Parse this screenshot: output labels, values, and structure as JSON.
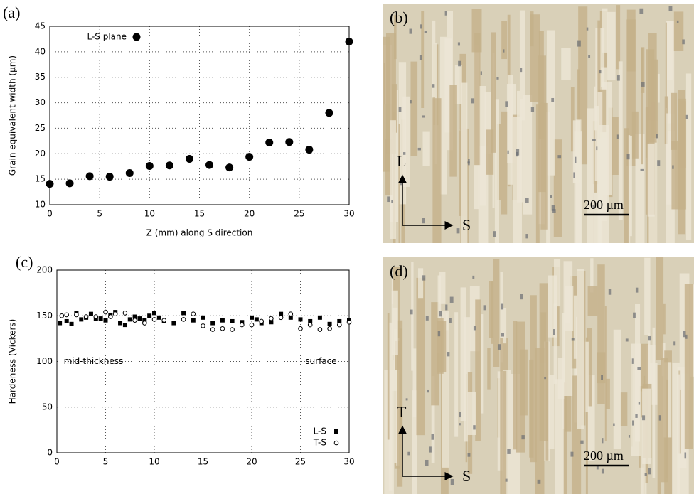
{
  "chart_data": [
    {
      "type": "scatter",
      "panel": "(a)",
      "xlabel": "Z (mm) along S direction",
      "ylabel": "Grain equivalent width (µm)",
      "xlim": [
        0,
        30
      ],
      "ylim": [
        10,
        45
      ],
      "xticks": [
        0,
        5,
        10,
        15,
        20,
        25,
        30
      ],
      "yticks": [
        10,
        15,
        20,
        25,
        30,
        35,
        40,
        45
      ],
      "grid": true,
      "legend": "upper-left",
      "series": [
        {
          "name": "L-S plane",
          "color": "#000000",
          "marker": "circle",
          "x": [
            0,
            2,
            4,
            6,
            8,
            10,
            12,
            14,
            16,
            18,
            20,
            22,
            24,
            26,
            28,
            30
          ],
          "values": [
            14.1,
            14.2,
            15.6,
            15.5,
            16.2,
            17.6,
            17.7,
            19.0,
            17.8,
            17.3,
            19.4,
            22.2,
            22.3,
            20.8,
            28.0,
            42.0
          ]
        }
      ]
    },
    {
      "type": "scatter",
      "panel": "(c)",
      "ylabel": "Hardeness (Vickers)",
      "xlim": [
        0,
        30
      ],
      "ylim": [
        0,
        200
      ],
      "xticks": [
        0,
        5,
        10,
        15,
        20,
        25,
        30
      ],
      "yticks": [
        0,
        50,
        100,
        150,
        200
      ],
      "grid": true,
      "legend": "lower-right",
      "annotations": [
        {
          "text": "mid-thickness",
          "x": 0.7,
          "y": 100
        },
        {
          "text": "surface",
          "x": 25.5,
          "y": 100
        }
      ],
      "series": [
        {
          "name": "L-S",
          "color": "#000000",
          "marker": "square",
          "x": [
            0.3,
            1,
            1.5,
            2,
            2.5,
            3,
            3.5,
            4,
            4.5,
            5,
            5.5,
            6,
            6.5,
            7,
            7.5,
            8,
            8.5,
            9,
            9.5,
            10,
            10.5,
            11,
            12,
            13,
            14,
            15,
            16,
            17,
            18,
            19,
            20,
            20.5,
            21,
            22,
            23,
            24,
            25,
            26,
            27,
            28,
            29,
            30
          ],
          "values": [
            142,
            144,
            141,
            153,
            146,
            148,
            152,
            147,
            147,
            145,
            151,
            154,
            142,
            140,
            146,
            149,
            147,
            145,
            150,
            153,
            148,
            144,
            142,
            153,
            145,
            148,
            142,
            145,
            144,
            143,
            148,
            146,
            142,
            143,
            152,
            148,
            146,
            144,
            148,
            141,
            144,
            145
          ]
        },
        {
          "name": "T-S",
          "color": "#000000",
          "marker": "open-circle",
          "x": [
            0.5,
            1,
            2,
            3,
            4,
            5,
            5.5,
            6,
            7,
            8,
            9,
            10,
            11,
            13,
            14,
            15,
            16,
            17,
            18,
            19,
            20,
            21,
            22,
            23,
            24,
            25,
            26,
            27,
            28,
            29,
            30
          ],
          "values": [
            150,
            151,
            151,
            149,
            149,
            154,
            149,
            152,
            153,
            145,
            142,
            146,
            145,
            146,
            152,
            139,
            135,
            136,
            135,
            140,
            140,
            144,
            147,
            148,
            152,
            136,
            140,
            135,
            136,
            140,
            143
          ]
        }
      ]
    }
  ],
  "micrographs": [
    {
      "panel": "(b)",
      "vertical_axis": "L",
      "horizontal_axis": "S",
      "scale_bar": "200 µm"
    },
    {
      "panel": "(d)",
      "vertical_axis": "T",
      "horizontal_axis": "S",
      "scale_bar": "200 µm"
    }
  ]
}
